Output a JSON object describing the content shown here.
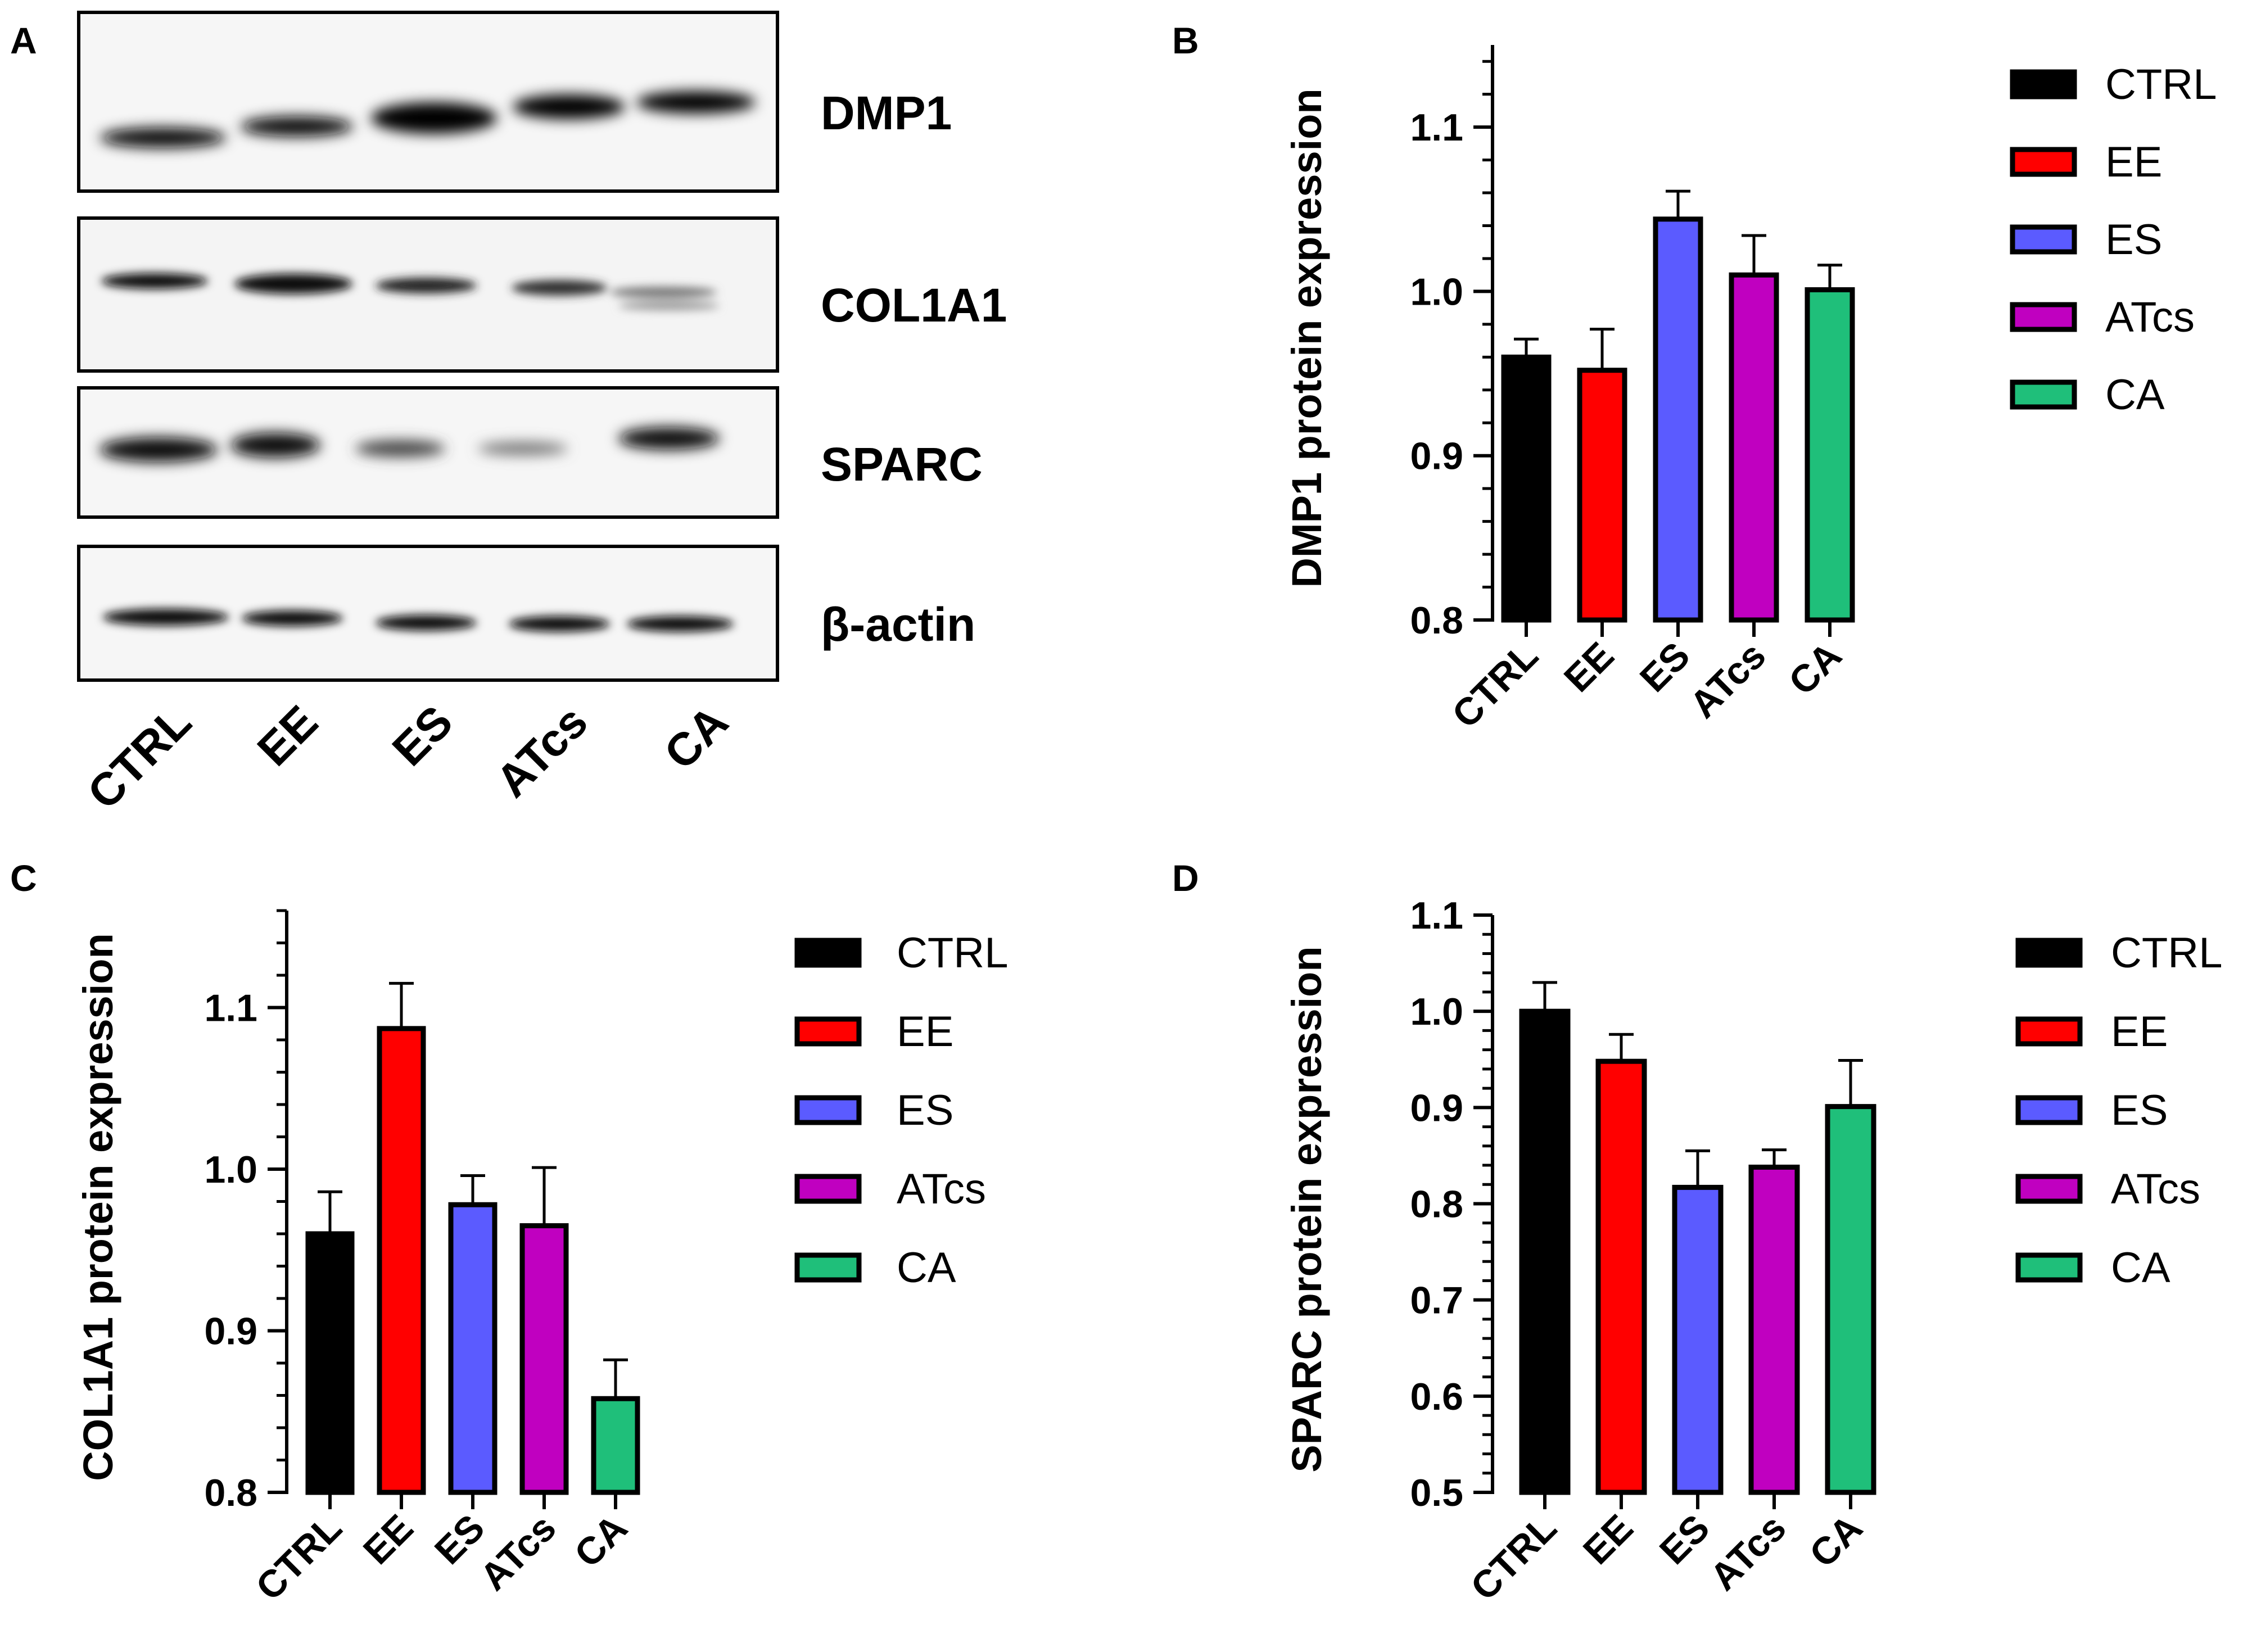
{
  "panel_letters": [
    "A",
    "B",
    "C",
    "D"
  ],
  "colors": {
    "CTRL": "#000000",
    "EE": "#ff0000",
    "ES": "#5b5bff",
    "ATcs": "#c000c0",
    "CA": "#1fbf7a"
  },
  "blot": {
    "bands": [
      "DMP1",
      "COL1A1",
      "SPARC",
      "β-actin"
    ],
    "lanes": [
      "CTRL",
      "EE",
      "ES",
      "ATcs",
      "CA"
    ]
  },
  "chart_data": [
    {
      "panel": "B",
      "type": "bar",
      "categories": [
        "CTRL",
        "EE",
        "ES",
        "ATcs",
        "CA"
      ],
      "values": [
        0.96,
        0.952,
        1.044,
        1.01,
        1.001
      ],
      "errors": [
        0.011,
        0.025,
        0.017,
        0.024,
        0.015
      ],
      "ylabel": "DMP1 protein expression",
      "xlabel": "",
      "ylim": [
        0.8,
        1.15
      ],
      "yticks": [
        "0.8",
        "0.9",
        "1.0",
        "1.1"
      ],
      "legend": [
        "CTRL",
        "EE",
        "ES",
        "ATcs",
        "CA"
      ],
      "legend_position": "right"
    },
    {
      "panel": "C",
      "type": "bar",
      "categories": [
        "CTRL",
        "EE",
        "ES",
        "ATcs",
        "CA"
      ],
      "values": [
        0.96,
        1.087,
        0.978,
        0.965,
        0.858
      ],
      "errors": [
        0.026,
        0.028,
        0.018,
        0.036,
        0.024
      ],
      "ylabel": "COL1A1 protein expression",
      "xlabel": "",
      "ylim": [
        0.8,
        1.16
      ],
      "yticks": [
        "0.8",
        "0.9",
        "1.0",
        "1.1"
      ],
      "legend": [
        "CTRL",
        "EE",
        "ES",
        "ATcs",
        "CA"
      ],
      "legend_position": "right"
    },
    {
      "panel": "D",
      "type": "bar",
      "categories": [
        "CTRL",
        "EE",
        "ES",
        "ATcs",
        "CA"
      ],
      "values": [
        1.0,
        0.948,
        0.817,
        0.838,
        0.901
      ],
      "errors": [
        0.03,
        0.028,
        0.038,
        0.018,
        0.048
      ],
      "ylabel": "SPARC protein expression",
      "xlabel": "",
      "ylim": [
        0.5,
        1.1
      ],
      "yticks": [
        "0.5",
        "0.6",
        "0.7",
        "0.8",
        "0.9",
        "1.0",
        "1.1"
      ],
      "legend": [
        "CTRL",
        "EE",
        "ES",
        "ATcs",
        "CA"
      ],
      "legend_position": "right"
    }
  ]
}
